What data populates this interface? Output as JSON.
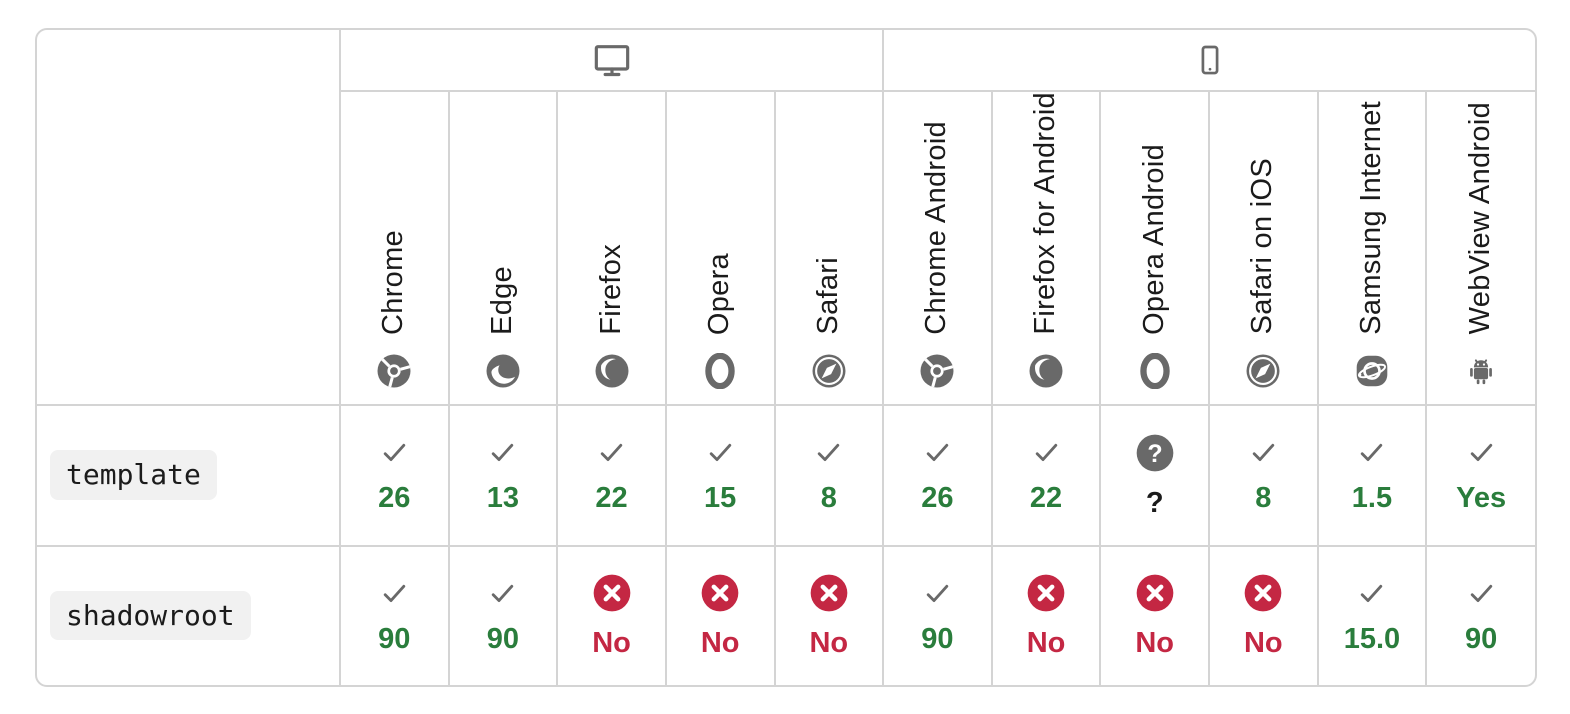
{
  "colors": {
    "supported_green": "#2a7d3c",
    "unsupported_red": "#c42743",
    "icon_gray": "#696969",
    "border_gray": "#d4d4d4",
    "code_background": "#f1f1f1",
    "text": "#1b1b1b"
  },
  "table": {
    "platforms": [
      {
        "id": "desktop",
        "icon": "desktop",
        "colspan": 5
      },
      {
        "id": "mobile",
        "icon": "mobile",
        "colspan": 6
      }
    ],
    "browsers": [
      {
        "id": "chrome",
        "label": "Chrome",
        "icon": "chrome"
      },
      {
        "id": "edge",
        "label": "Edge",
        "icon": "edge"
      },
      {
        "id": "firefox",
        "label": "Firefox",
        "icon": "firefox"
      },
      {
        "id": "opera",
        "label": "Opera",
        "icon": "opera"
      },
      {
        "id": "safari",
        "label": "Safari",
        "icon": "safari"
      },
      {
        "id": "chrome-android",
        "label": "Chrome Android",
        "icon": "chrome"
      },
      {
        "id": "firefox-android",
        "label": "Firefox for Android",
        "icon": "firefox"
      },
      {
        "id": "opera-android",
        "label": "Opera Android",
        "icon": "opera"
      },
      {
        "id": "safari-ios",
        "label": "Safari on iOS",
        "icon": "safari"
      },
      {
        "id": "samsung-internet",
        "label": "Samsung Internet",
        "icon": "samsung-internet"
      },
      {
        "id": "webview-android",
        "label": "WebView Android",
        "icon": "webview-android"
      }
    ],
    "rows": [
      {
        "feature": "template",
        "support": [
          {
            "status": "yes",
            "value": "26"
          },
          {
            "status": "yes",
            "value": "13"
          },
          {
            "status": "yes",
            "value": "22"
          },
          {
            "status": "yes",
            "value": "15"
          },
          {
            "status": "yes",
            "value": "8"
          },
          {
            "status": "yes",
            "value": "26"
          },
          {
            "status": "yes",
            "value": "22"
          },
          {
            "status": "unknown",
            "value": "?"
          },
          {
            "status": "yes",
            "value": "8"
          },
          {
            "status": "yes",
            "value": "1.5"
          },
          {
            "status": "yes",
            "value": "Yes"
          }
        ]
      },
      {
        "feature": "shadowroot",
        "support": [
          {
            "status": "yes",
            "value": "90"
          },
          {
            "status": "yes",
            "value": "90"
          },
          {
            "status": "no",
            "value": "No"
          },
          {
            "status": "no",
            "value": "No"
          },
          {
            "status": "no",
            "value": "No"
          },
          {
            "status": "yes",
            "value": "90"
          },
          {
            "status": "no",
            "value": "No"
          },
          {
            "status": "no",
            "value": "No"
          },
          {
            "status": "no",
            "value": "No"
          },
          {
            "status": "yes",
            "value": "15.0"
          },
          {
            "status": "yes",
            "value": "90"
          }
        ]
      }
    ]
  }
}
